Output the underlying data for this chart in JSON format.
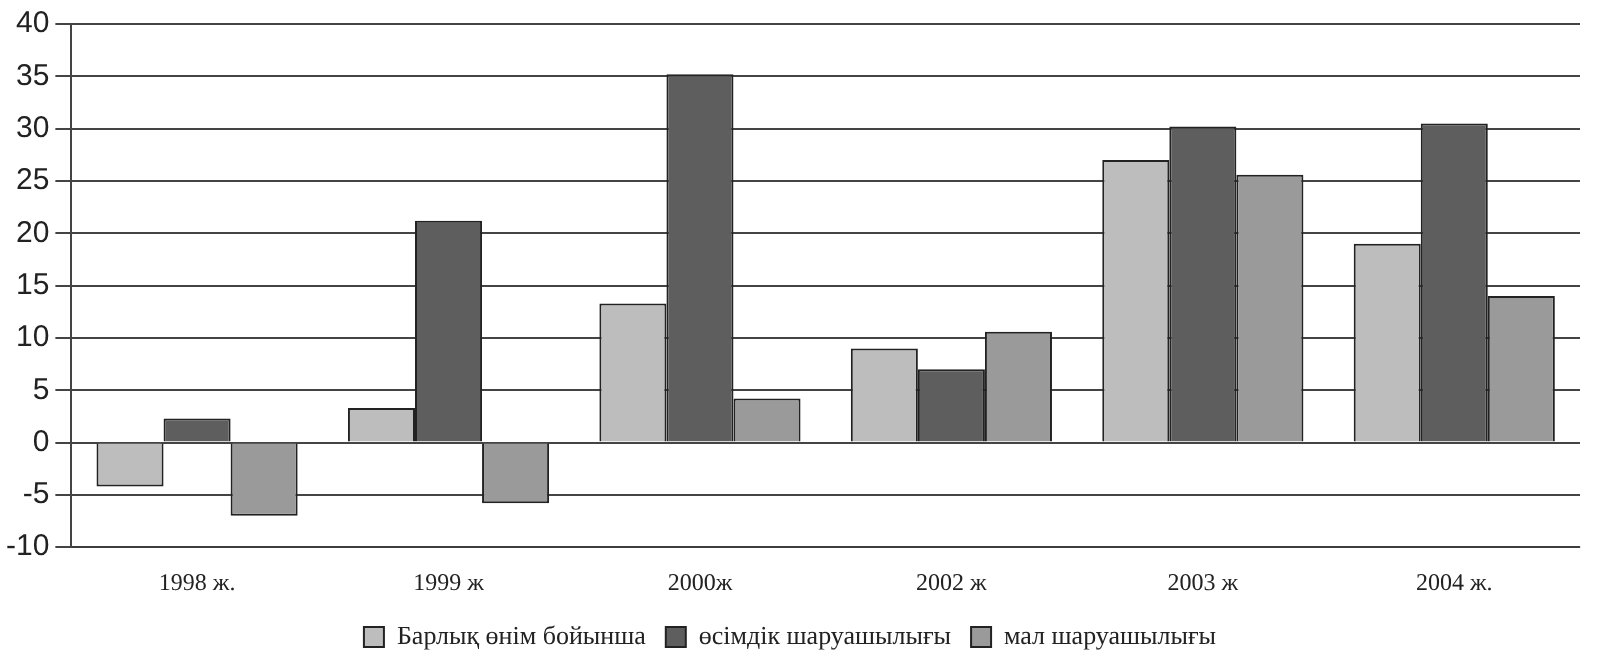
{
  "chart_data": {
    "type": "bar",
    "categories": [
      "1998 ж.",
      "1999 ж",
      "2000ж",
      "2002 ж",
      "2003 ж",
      "2004 ж."
    ],
    "series": [
      {
        "name": "Барлық өнім бойынша",
        "color": "#bdbdbd",
        "values": [
          -4.2,
          3.3,
          13.3,
          9,
          27,
          19
        ]
      },
      {
        "name": "өсімдік шаруашылығы",
        "color": "#5e5e5e",
        "values": [
          2.3,
          21.2,
          35.2,
          7,
          30.2,
          30.5
        ]
      },
      {
        "name": "мал шаруашылығы",
        "color": "#9a9a9a",
        "values": [
          -7,
          -5.8,
          4.2,
          10.6,
          25.6,
          14
        ]
      }
    ],
    "ylim": [
      -10,
      40
    ],
    "yticks": [
      -10,
      -5,
      0,
      5,
      10,
      15,
      20,
      25,
      30,
      35,
      40
    ],
    "grid": "y",
    "legend": "bottom"
  }
}
